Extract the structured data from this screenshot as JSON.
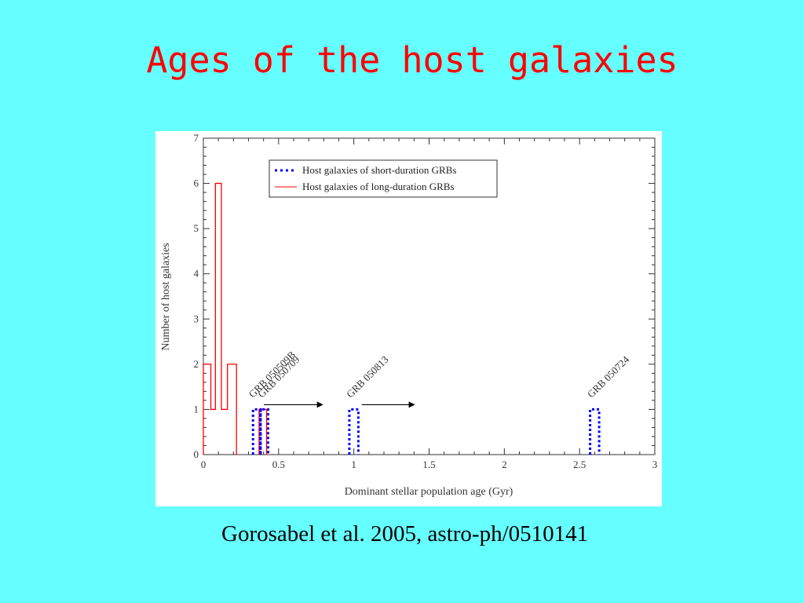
{
  "slide": {
    "title": "Ages of the host galaxies",
    "caption": "Gorosabel et al. 2005, astro-ph/0510141",
    "colors": {
      "background": "#66ffff",
      "title": "#ff0000"
    }
  },
  "chart_data": {
    "type": "histogram",
    "title": "",
    "xlabel": "Dominant stellar population age (Gyr)",
    "ylabel": "Number of host galaxies",
    "xlim": [
      0,
      3
    ],
    "ylim": [
      0,
      7
    ],
    "xticks": [
      "0",
      "0.5",
      "1",
      "1.5",
      "2",
      "2.5",
      "3"
    ],
    "yticks": [
      "0",
      "1",
      "2",
      "3",
      "4",
      "5",
      "6",
      "7"
    ],
    "grid": false,
    "legend_position": "top-center",
    "series": [
      {
        "name": "Host galaxies of short-duration GRBs",
        "color": "#0000ff",
        "style": "dotted",
        "bins": [
          {
            "x0": 0.33,
            "x1": 0.38,
            "count": 1
          },
          {
            "x0": 0.38,
            "x1": 0.43,
            "count": 1
          },
          {
            "x0": 0.97,
            "x1": 1.03,
            "count": 1
          },
          {
            "x0": 2.57,
            "x1": 2.63,
            "count": 1
          }
        ]
      },
      {
        "name": "Host galaxies of long-duration GRBs",
        "color": "#ff0000",
        "style": "solid",
        "bins": [
          {
            "x0": 0.0,
            "x1": 0.05,
            "count": 2
          },
          {
            "x0": 0.05,
            "x1": 0.08,
            "count": 1
          },
          {
            "x0": 0.08,
            "x1": 0.12,
            "count": 6
          },
          {
            "x0": 0.12,
            "x1": 0.16,
            "count": 1
          },
          {
            "x0": 0.16,
            "x1": 0.22,
            "count": 2
          },
          {
            "x0": 0.37,
            "x1": 0.42,
            "count": 1
          }
        ]
      }
    ],
    "annotations": [
      {
        "text": "GRB 050509B",
        "x": 0.35,
        "y": 1,
        "arrow_to": 0.76
      },
      {
        "text": "GRB 050709",
        "x": 0.41,
        "y": 1,
        "arrow_to": null
      },
      {
        "text": "GRB 050813",
        "x": 1.0,
        "y": 1,
        "arrow_to": 1.37
      },
      {
        "text": "GRB 050724",
        "x": 2.6,
        "y": 1,
        "arrow_to": null
      }
    ]
  }
}
